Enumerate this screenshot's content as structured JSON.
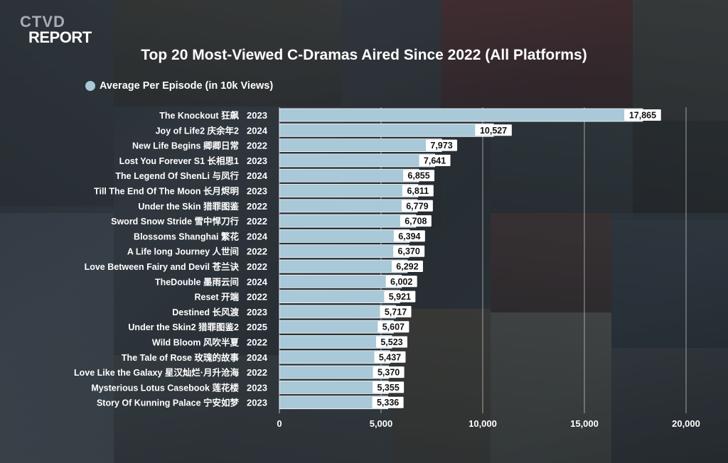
{
  "brand": {
    "top": "CTVD",
    "bottom": "REPORT"
  },
  "colors": {
    "bar": "#a9c8d8",
    "bar_stroke": "#ffffff",
    "label_bg": "#ffffff",
    "text": "#ffffff"
  },
  "chart_data": {
    "type": "bar",
    "orientation": "horizontal",
    "title": "Top 20 Most-Viewed C-Dramas Aired Since 2022 (All Platforms)",
    "legend": [
      "Average Per Episode (in 10k Views)"
    ],
    "legend_position": "top-left",
    "categories": [
      "The Knockout 狂飙",
      "Joy of Life2 庆余年2",
      "New Life Begins 卿卿日常",
      "Lost You Forever S1 长相思1",
      "The Legend Of ShenLi 与凤行",
      "Till The End Of The Moon 长月烬明",
      "Under the Skin 猎罪图鉴",
      "Sword Snow Stride 雪中悍刀行",
      "Blossoms Shanghai 繁花",
      "A Life long Journey 人世间",
      "Love Between Fairy and Devil 苍兰诀",
      "TheDouble 墨雨云间",
      "Reset 开端",
      "Destined 长风渡",
      "Under the Skin2 猎罪图鉴2",
      "Wild Bloom 风吹半夏",
      "The Tale of Rose 玫瑰的故事",
      "Love Like the Galaxy 星汉灿烂·月升沧海",
      "Mysterious Lotus Casebook 莲花楼",
      "Story Of Kunning Palace 宁安如梦"
    ],
    "years": [
      "2023",
      "2024",
      "2022",
      "2023",
      "2024",
      "2023",
      "2022",
      "2022",
      "2024",
      "2022",
      "2022",
      "2024",
      "2022",
      "2023",
      "2025",
      "2022",
      "2024",
      "2022",
      "2023",
      "2023"
    ],
    "values": [
      17865,
      10527,
      7973,
      7641,
      6855,
      6811,
      6779,
      6708,
      6394,
      6370,
      6292,
      6002,
      5921,
      5717,
      5607,
      5523,
      5437,
      5370,
      5355,
      5336
    ],
    "value_labels": [
      "17,865",
      "10,527",
      "7,973",
      "7,641",
      "6,855",
      "6,811",
      "6,779",
      "6,708",
      "6,394",
      "6,370",
      "6,292",
      "6,002",
      "5,921",
      "5,717",
      "5,607",
      "5,523",
      "5,437",
      "5,370",
      "5,355",
      "5,336"
    ],
    "xlim": [
      0,
      20000
    ],
    "xticks": [
      0,
      5000,
      10000,
      15000,
      20000
    ],
    "xtick_labels": [
      "0",
      "5,000",
      "10,000",
      "15,000",
      "20,000"
    ],
    "grid": true
  }
}
